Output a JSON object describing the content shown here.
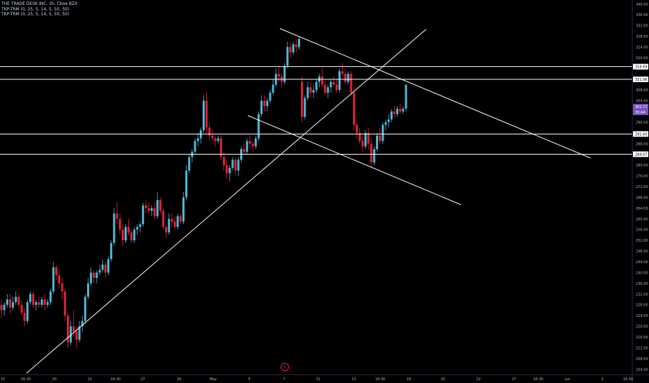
{
  "legend": {
    "symbol": "THE TRADE DESK INC, 1h, Cboe BZX",
    "indicator_1": "TKP-TRM (0, 25, 5, 14, 5, 50, 50)",
    "indicator_2": "TKP-TRM (0, 25, 5, 14, 5, 50, 50)"
  },
  "earnings_marker": "E",
  "chart_data": {
    "type": "candlestick",
    "y_ticks": [
      340.0,
      336.0,
      332.0,
      328.0,
      324.0,
      320.0,
      316.0,
      312.0,
      308.0,
      304.0,
      300.0,
      296.0,
      292.0,
      288.0,
      284.0,
      280.0,
      276.0,
      272.0,
      268.0,
      264.0,
      260.0,
      256.0,
      252.0,
      248.0,
      244.0,
      240.0,
      236.0,
      232.0,
      228.0,
      224.0,
      220.0,
      216.0,
      212.0,
      208.0,
      204.0
    ],
    "x_ticks": [
      "15",
      "16:30",
      "20",
      "22",
      "16:30",
      "27",
      "29",
      "May",
      "5",
      "7",
      "11",
      "13",
      "16:30",
      "18",
      "20",
      "22",
      "27",
      "16:30",
      "Jun",
      "3",
      "16:30"
    ],
    "ylim": [
      202.0,
      341.5
    ],
    "horizontal_levels": [
      316.69,
      311.96,
      291.6,
      284.07
    ],
    "price_labels": [
      "301.77",
      "35:44"
    ],
    "colors": {
      "up": "#4fb9d6",
      "down": "#e0223c",
      "neutral": "#d8d8d8",
      "price_label_bg": "#7e57c2",
      "line": "#ffffff"
    },
    "candles": [
      [
        0,
        228,
        230,
        223,
        226
      ],
      [
        1,
        226,
        229,
        224,
        228
      ],
      [
        2,
        228,
        232,
        227,
        230
      ],
      [
        3,
        230,
        232,
        225,
        227
      ],
      [
        4,
        227,
        231,
        226,
        229
      ],
      [
        5,
        229,
        233,
        228,
        231
      ],
      [
        6,
        231,
        232,
        227,
        228
      ],
      [
        7,
        228,
        230,
        224,
        225
      ],
      [
        8,
        225,
        227,
        220,
        222
      ],
      [
        9,
        222,
        230,
        221,
        229
      ],
      [
        10,
        229,
        233,
        228,
        232
      ],
      [
        11,
        232,
        233,
        227,
        228
      ],
      [
        12,
        228,
        230,
        226,
        229
      ],
      [
        13,
        229,
        231,
        227,
        228
      ],
      [
        14,
        228,
        231,
        227,
        230
      ],
      [
        15,
        230,
        232,
        226,
        228
      ],
      [
        16,
        228,
        230,
        227,
        229
      ],
      [
        17,
        229,
        234,
        228,
        233
      ],
      [
        18,
        233,
        244,
        232,
        242
      ],
      [
        19,
        242,
        243,
        237,
        239
      ],
      [
        20,
        239,
        241,
        234,
        236
      ],
      [
        21,
        236,
        238,
        230,
        233
      ],
      [
        22,
        233,
        234,
        222,
        224
      ],
      [
        23,
        224,
        225,
        212,
        214
      ],
      [
        24,
        214,
        222,
        213,
        220
      ],
      [
        25,
        220,
        226,
        216,
        218
      ],
      [
        26,
        218,
        220,
        212,
        215
      ],
      [
        27,
        215,
        222,
        214,
        220
      ],
      [
        28,
        220,
        224,
        218,
        222
      ],
      [
        29,
        222,
        232,
        221,
        231
      ],
      [
        30,
        231,
        238,
        230,
        236
      ],
      [
        31,
        236,
        242,
        235,
        240
      ],
      [
        32,
        240,
        241,
        236,
        238
      ],
      [
        33,
        238,
        241,
        236,
        240
      ],
      [
        34,
        240,
        243,
        239,
        241
      ],
      [
        35,
        241,
        245,
        240,
        243
      ],
      [
        36,
        243,
        244,
        238,
        240
      ],
      [
        37,
        240,
        246,
        239,
        245
      ],
      [
        38,
        245,
        252,
        244,
        251
      ],
      [
        39,
        251,
        264,
        250,
        262
      ],
      [
        40,
        262,
        266,
        258,
        260
      ],
      [
        41,
        260,
        262,
        254,
        256
      ],
      [
        42,
        256,
        258,
        250,
        252
      ],
      [
        43,
        252,
        258,
        251,
        257
      ],
      [
        44,
        257,
        260,
        254,
        255
      ],
      [
        45,
        255,
        256,
        251,
        252
      ],
      [
        46,
        252,
        257,
        251,
        256
      ],
      [
        47,
        256,
        258,
        254,
        257
      ],
      [
        48,
        257,
        259,
        255,
        258
      ],
      [
        49,
        258,
        266,
        257,
        265
      ],
      [
        50,
        265,
        267,
        262,
        264
      ],
      [
        51,
        264,
        266,
        262,
        263
      ],
      [
        52,
        263,
        265,
        261,
        264
      ],
      [
        53,
        264,
        266,
        260,
        261
      ],
      [
        54,
        261,
        270,
        260,
        267
      ],
      [
        55,
        267,
        268,
        262,
        263
      ],
      [
        56,
        263,
        264,
        256,
        257
      ],
      [
        57,
        257,
        258,
        253,
        255
      ],
      [
        58,
        255,
        262,
        254,
        260
      ],
      [
        59,
        260,
        262,
        257,
        259
      ],
      [
        60,
        259,
        261,
        256,
        257
      ],
      [
        61,
        257,
        262,
        256,
        261
      ],
      [
        62,
        261,
        262,
        258,
        259
      ],
      [
        63,
        259,
        270,
        258,
        268
      ],
      [
        64,
        268,
        280,
        267,
        278
      ],
      [
        65,
        278,
        284,
        277,
        283
      ],
      [
        66,
        283,
        286,
        281,
        285
      ],
      [
        67,
        285,
        290,
        284,
        289
      ],
      [
        68,
        289,
        292,
        287,
        290
      ],
      [
        69,
        290,
        294,
        288,
        293
      ],
      [
        70,
        293,
        306,
        292,
        304
      ],
      [
        71,
        304,
        307,
        292,
        294
      ],
      [
        72,
        294,
        296,
        289,
        291
      ],
      [
        73,
        291,
        293,
        289,
        290
      ],
      [
        74,
        290,
        291,
        287,
        289
      ],
      [
        75,
        289,
        291,
        288,
        290
      ],
      [
        76,
        290,
        291,
        282,
        283
      ],
      [
        77,
        283,
        285,
        278,
        280
      ],
      [
        78,
        280,
        282,
        275,
        277
      ],
      [
        79,
        277,
        280,
        274,
        279
      ],
      [
        80,
        279,
        283,
        278,
        282
      ],
      [
        81,
        282,
        283,
        276,
        278
      ],
      [
        82,
        278,
        283,
        276,
        282
      ],
      [
        83,
        282,
        287,
        281,
        286
      ],
      [
        84,
        286,
        288,
        284,
        285
      ],
      [
        85,
        285,
        290,
        284,
        289
      ],
      [
        86,
        289,
        291,
        286,
        288
      ],
      [
        87,
        288,
        289,
        285,
        287
      ],
      [
        88,
        287,
        291,
        286,
        290
      ],
      [
        89,
        290,
        300,
        289,
        299
      ],
      [
        90,
        299,
        306,
        298,
        304
      ],
      [
        91,
        304,
        306,
        300,
        302
      ],
      [
        92,
        302,
        305,
        300,
        304
      ],
      [
        93,
        304,
        308,
        303,
        307
      ],
      [
        94,
        307,
        312,
        306,
        310
      ],
      [
        95,
        310,
        316,
        309,
        314
      ],
      [
        96,
        314,
        317,
        311,
        313
      ],
      [
        97,
        313,
        314,
        309,
        311
      ],
      [
        98,
        311,
        318,
        310,
        317
      ],
      [
        99,
        317,
        326,
        316,
        324
      ],
      [
        100,
        324,
        326,
        320,
        322
      ],
      [
        101,
        322,
        326,
        321,
        325
      ],
      [
        102,
        325,
        327,
        322,
        324
      ],
      [
        103,
        324,
        328,
        323,
        327
      ],
      [
        104,
        311,
        313,
        296,
        298
      ],
      [
        105,
        298,
        306,
        297,
        305
      ],
      [
        106,
        305,
        311,
        304,
        309
      ],
      [
        107,
        309,
        311,
        305,
        307
      ],
      [
        108,
        307,
        310,
        305,
        308
      ],
      [
        109,
        308,
        312,
        307,
        311
      ],
      [
        110,
        311,
        314,
        309,
        313
      ],
      [
        111,
        313,
        316,
        309,
        310
      ],
      [
        112,
        310,
        312,
        306,
        307
      ],
      [
        113,
        307,
        310,
        305,
        309
      ],
      [
        114,
        309,
        312,
        307,
        311
      ],
      [
        115,
        311,
        313,
        309,
        310
      ],
      [
        116,
        310,
        312,
        307,
        308
      ],
      [
        117,
        308,
        316,
        307,
        315
      ],
      [
        118,
        315,
        318,
        313,
        314
      ],
      [
        119,
        314,
        316,
        310,
        311
      ],
      [
        120,
        311,
        315,
        310,
        314
      ],
      [
        121,
        314,
        315,
        306,
        307
      ],
      [
        122,
        307,
        309,
        293,
        295
      ],
      [
        123,
        295,
        296,
        290,
        292
      ],
      [
        124,
        292,
        294,
        288,
        289
      ],
      [
        125,
        289,
        291,
        285,
        287
      ],
      [
        126,
        287,
        293,
        286,
        292
      ],
      [
        127,
        292,
        294,
        286,
        288
      ],
      [
        128,
        288,
        290,
        279,
        281
      ],
      [
        129,
        281,
        287,
        280,
        286
      ],
      [
        130,
        286,
        292,
        285,
        291
      ],
      [
        131,
        291,
        294,
        288,
        289
      ],
      [
        132,
        289,
        296,
        288,
        295
      ],
      [
        133,
        295,
        297,
        293,
        296
      ],
      [
        134,
        296,
        299,
        294,
        297
      ],
      [
        135,
        297,
        301,
        296,
        300
      ],
      [
        136,
        300,
        302,
        298,
        299
      ],
      [
        137,
        299,
        302,
        298,
        301
      ],
      [
        138,
        301,
        303,
        299,
        300
      ],
      [
        139,
        300,
        302,
        299,
        301
      ],
      [
        140,
        301,
        310,
        300,
        310
      ]
    ]
  }
}
